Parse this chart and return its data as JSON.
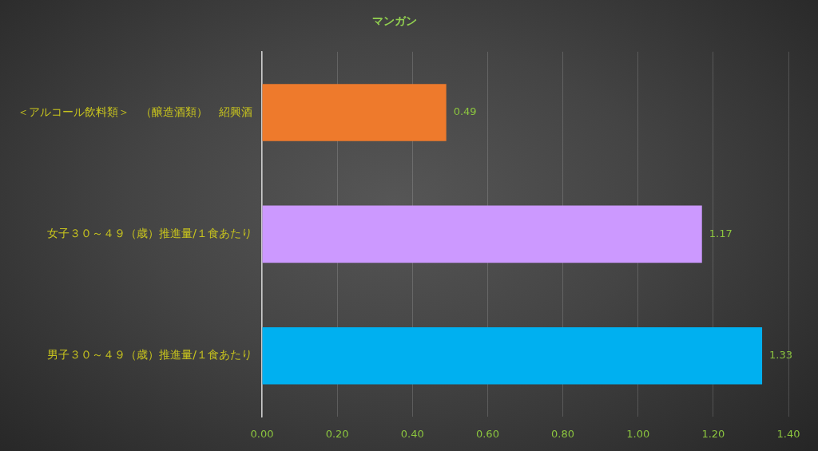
{
  "chart_data": {
    "type": "bar",
    "orientation": "horizontal",
    "title": "マンガン",
    "categories": [
      "＜アルコール飲料類＞　（醸造酒類）　紹興酒",
      "女子３０～４９（歳）推進量/１食あたり",
      "男子３０～４９（歳）推進量/１食あたり"
    ],
    "values": [
      0.49,
      1.17,
      1.33
    ],
    "colors": [
      "#ee7a2c",
      "#cc99ff",
      "#00b0f0"
    ],
    "xlim": [
      0,
      1.4
    ],
    "xticks": [
      {
        "value": 0,
        "label": "0.00"
      },
      {
        "value": 0.2,
        "label": "0.20"
      },
      {
        "value": 0.4,
        "label": "0.40"
      },
      {
        "value": 0.6,
        "label": "0.60"
      },
      {
        "value": 0.8,
        "label": "0.80"
      },
      {
        "value": 1,
        "label": "1.00"
      },
      {
        "value": 1.2,
        "label": "1.20"
      },
      {
        "value": 1.4,
        "label": "1.40"
      }
    ],
    "grid": "x",
    "data_labels": true
  }
}
